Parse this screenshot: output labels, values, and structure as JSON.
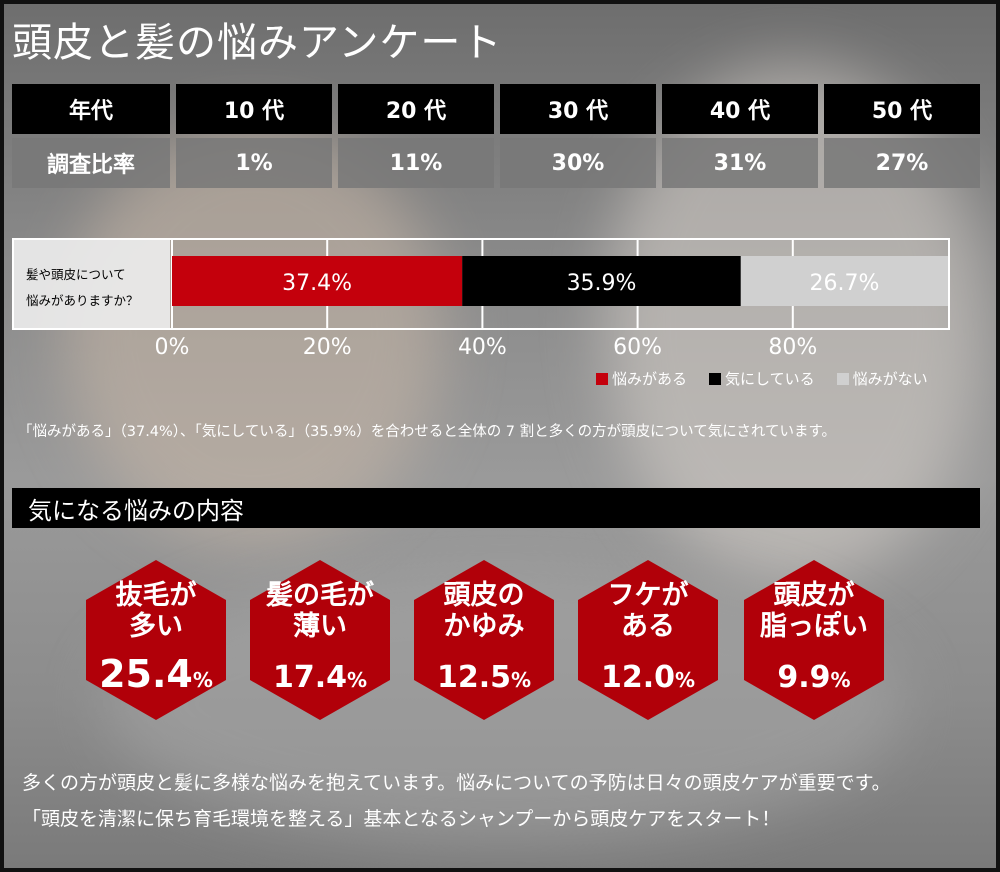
{
  "title": "頭皮と髪の悩みアンケート",
  "survey_table": {
    "header_label": "年代",
    "value_label": "調査比率",
    "columns": [
      {
        "age": "10 代",
        "ratio": "1%"
      },
      {
        "age": "20 代",
        "ratio": "11%"
      },
      {
        "age": "30 代",
        "ratio": "30%"
      },
      {
        "age": "40 代",
        "ratio": "31%"
      },
      {
        "age": "50 代",
        "ratio": "27%"
      }
    ]
  },
  "chart_data": {
    "type": "bar",
    "orientation": "horizontal-stacked",
    "categories": [
      "髪や頭皮について悩みがありますか？"
    ],
    "question_line1": "髪や頭皮について",
    "question_line2": "悩みがありますか？",
    "series": [
      {
        "name": "悩みがある",
        "values": [
          37.4
        ],
        "label": "37.4%",
        "color": "#c4000c"
      },
      {
        "name": "気にしている",
        "values": [
          35.9
        ],
        "label": "35.9%",
        "color": "#000000"
      },
      {
        "name": "悩みがない",
        "values": [
          26.7
        ],
        "label": "26.7%",
        "color": "#d0d0d0"
      }
    ],
    "xlim": [
      0,
      100
    ],
    "xticks": [
      "0%",
      "20%",
      "40%",
      "60%",
      "80%"
    ],
    "xtick_values": [
      0,
      20,
      40,
      60,
      80
    ],
    "grid": true,
    "legend_position": "bottom-right"
  },
  "note": "「悩みがある」（37.4%）、「気にしている」（35.9%）を合わせると全体の 7 割と多くの方が頭皮について気にされています。",
  "section_title": "気になる悩みの内容",
  "concerns": [
    {
      "line1": "抜毛が",
      "line2": "多い",
      "value": "25.4",
      "unit": "%"
    },
    {
      "line1": "髪の毛が",
      "line2": "薄い",
      "value": "17.4",
      "unit": "%"
    },
    {
      "line1": "頭皮の",
      "line2": "かゆみ",
      "value": "12.5",
      "unit": "%"
    },
    {
      "line1": "フケが",
      "line2": "ある",
      "value": "12.0",
      "unit": "%"
    },
    {
      "line1": "頭皮が",
      "line2": "脂っぽい",
      "value": "9.9",
      "unit": "%"
    }
  ],
  "footer": {
    "line1": "多くの方が頭皮と髪に多様な悩みを抱えています。悩みについての予防は日々の頭皮ケアが重要です。",
    "line2": "「頭皮を清潔に保ち育毛環境を整える」基本となるシャンプーから頭皮ケアをスタート！"
  },
  "colors": {
    "accent_red": "#b10009",
    "bar_black": "#000000",
    "bar_gray": "#d0d0d0"
  }
}
